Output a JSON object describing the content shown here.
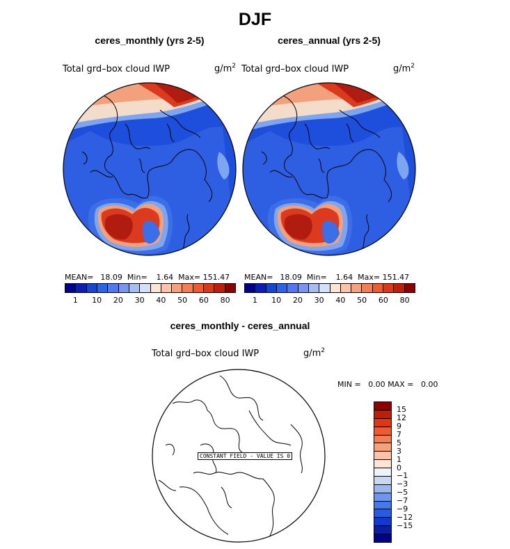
{
  "title": "DJF",
  "panels": [
    {
      "title": "ceres_monthly (yrs 2-5)",
      "var_label": "Total grd–box cloud IWP",
      "unit": "g/m",
      "unit_exp": "2",
      "stats": {
        "mean_label": "MEAN=",
        "mean": "18.09",
        "min_label": "Min=",
        "min": "1.64",
        "max_label": "Max=",
        "max": "151.47"
      }
    },
    {
      "title": "ceres_annual (yrs 2-5)",
      "var_label": "Total grd–box cloud IWP",
      "unit": "g/m",
      "unit_exp": "2",
      "stats": {
        "mean_label": "MEAN=",
        "mean": "18.09",
        "min_label": "Min=",
        "min": "1.64",
        "max_label": "Max=",
        "max": "151.47"
      }
    }
  ],
  "colorbar_top": {
    "colors": [
      "#00008b",
      "#0a1eb4",
      "#1446d2",
      "#2d64e6",
      "#5078f0",
      "#7896f0",
      "#a5beef",
      "#d2e1f5",
      "#fde4d4",
      "#fbc3a8",
      "#f7a07c",
      "#f37d55",
      "#ee5a32",
      "#dc3719",
      "#be1e0a",
      "#8b0000"
    ],
    "tick_labels": [
      "1",
      "10",
      "20",
      "30",
      "40",
      "50",
      "60",
      "80"
    ]
  },
  "diff": {
    "title": "ceres_monthly - ceres_annual",
    "var_label": "Total grd–box cloud IWP",
    "unit": "g/m",
    "unit_exp": "2",
    "min_label": "MIN =",
    "min": "0.00",
    "max_label": "MAX =",
    "max": "0.00",
    "constant_note": "CONSTANT FIELD - VALUE IS 0",
    "colorbar": {
      "colors": [
        "#8b0000",
        "#be1e0a",
        "#dc3719",
        "#ee5a32",
        "#f37d55",
        "#f7a07c",
        "#fbc3a8",
        "#fde4d4",
        "#eef3fa",
        "#c8d8f2",
        "#9bb8ee",
        "#6e96f0",
        "#4678ec",
        "#2a5ae0",
        "#1438c8",
        "#0a1ea0",
        "#00008b"
      ],
      "tick_labels": [
        "15",
        "12",
        "9",
        "7",
        "5",
        "3",
        "1",
        "0",
        "−1",
        "−3",
        "−5",
        "−7",
        "−9",
        "−12",
        "−15"
      ]
    }
  },
  "map_colors": {
    "ocean": "#1e4fdc",
    "mid": "#3c6ee8",
    "light": "#7ea6f0",
    "cream": "#f4dccb",
    "peach": "#f3a07c",
    "red": "#dc3a1e",
    "dark_red": "#b01c10"
  }
}
